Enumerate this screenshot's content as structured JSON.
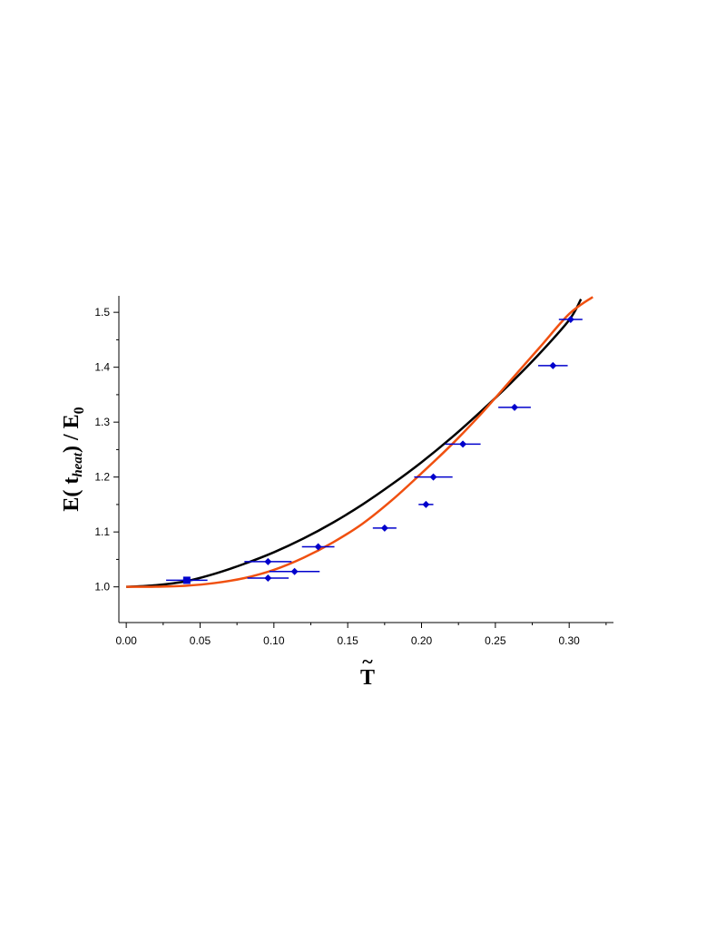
{
  "chart_data": {
    "type": "scatter",
    "xlabel": "T",
    "xlabel_accent": "~",
    "ylabel": {
      "prefix": "E( t",
      "subscript": "heat",
      "middle": ") / E",
      "subscript2": "0"
    },
    "xlim": [
      -0.005,
      0.33
    ],
    "ylim": [
      0.935,
      1.53
    ],
    "x_ticks": [
      "0.00",
      "0.05",
      "0.10",
      "0.15",
      "0.20",
      "0.25",
      "0.30"
    ],
    "x_tick_values": [
      0.0,
      0.05,
      0.1,
      0.15,
      0.2,
      0.25,
      0.3
    ],
    "y_ticks": [
      "1.0",
      "1.1",
      "1.2",
      "1.3",
      "1.4",
      "1.5"
    ],
    "y_tick_values": [
      1.0,
      1.1,
      1.2,
      1.3,
      1.4,
      1.5
    ],
    "grid": false,
    "series": [
      {
        "kind": "curve",
        "color": "#000000",
        "points": [
          [
            0.0,
            1.0
          ],
          [
            0.02,
            1.003
          ],
          [
            0.04,
            1.01
          ],
          [
            0.06,
            1.024
          ],
          [
            0.08,
            1.042
          ],
          [
            0.1,
            1.063
          ],
          [
            0.12,
            1.088
          ],
          [
            0.14,
            1.117
          ],
          [
            0.16,
            1.15
          ],
          [
            0.18,
            1.187
          ],
          [
            0.2,
            1.227
          ],
          [
            0.22,
            1.271
          ],
          [
            0.24,
            1.319
          ],
          [
            0.26,
            1.37
          ],
          [
            0.28,
            1.425
          ],
          [
            0.3,
            1.486
          ],
          [
            0.308,
            1.524
          ]
        ]
      },
      {
        "kind": "curve",
        "color": "#f05010",
        "points": [
          [
            0.0,
            1.0
          ],
          [
            0.02,
            1.0003
          ],
          [
            0.04,
            1.002
          ],
          [
            0.06,
            1.007
          ],
          [
            0.08,
            1.016
          ],
          [
            0.1,
            1.031
          ],
          [
            0.12,
            1.053
          ],
          [
            0.14,
            1.081
          ],
          [
            0.16,
            1.115
          ],
          [
            0.18,
            1.158
          ],
          [
            0.2,
            1.207
          ],
          [
            0.22,
            1.258
          ],
          [
            0.24,
            1.314
          ],
          [
            0.26,
            1.375
          ],
          [
            0.28,
            1.436
          ],
          [
            0.3,
            1.497
          ],
          [
            0.316,
            1.528
          ]
        ]
      },
      {
        "kind": "points",
        "color": "#0000cc",
        "marker_square": [
          0.041,
          1.012
        ],
        "points": [
          {
            "x": 0.041,
            "y": 1.012,
            "xerr": 0.014,
            "marker": "square"
          },
          {
            "x": 0.096,
            "y": 1.016,
            "xerr": 0.014,
            "marker": "diamond"
          },
          {
            "x": 0.096,
            "y": 1.046,
            "xerr": 0.016,
            "marker": "diamond"
          },
          {
            "x": 0.114,
            "y": 1.028,
            "xerr": 0.017,
            "marker": "diamond"
          },
          {
            "x": 0.13,
            "y": 1.073,
            "xerr": 0.011,
            "marker": "diamond"
          },
          {
            "x": 0.175,
            "y": 1.107,
            "xerr": 0.008,
            "marker": "diamond"
          },
          {
            "x": 0.203,
            "y": 1.15,
            "xerr": 0.005,
            "marker": "diamond"
          },
          {
            "x": 0.208,
            "y": 1.2,
            "xerr": 0.013,
            "marker": "diamond"
          },
          {
            "x": 0.228,
            "y": 1.26,
            "xerr": 0.012,
            "marker": "diamond"
          },
          {
            "x": 0.263,
            "y": 1.327,
            "xerr": 0.011,
            "marker": "diamond"
          },
          {
            "x": 0.289,
            "y": 1.403,
            "xerr": 0.01,
            "marker": "diamond"
          },
          {
            "x": 0.301,
            "y": 1.487,
            "xerr": 0.008,
            "marker": "diamond"
          }
        ]
      }
    ]
  }
}
